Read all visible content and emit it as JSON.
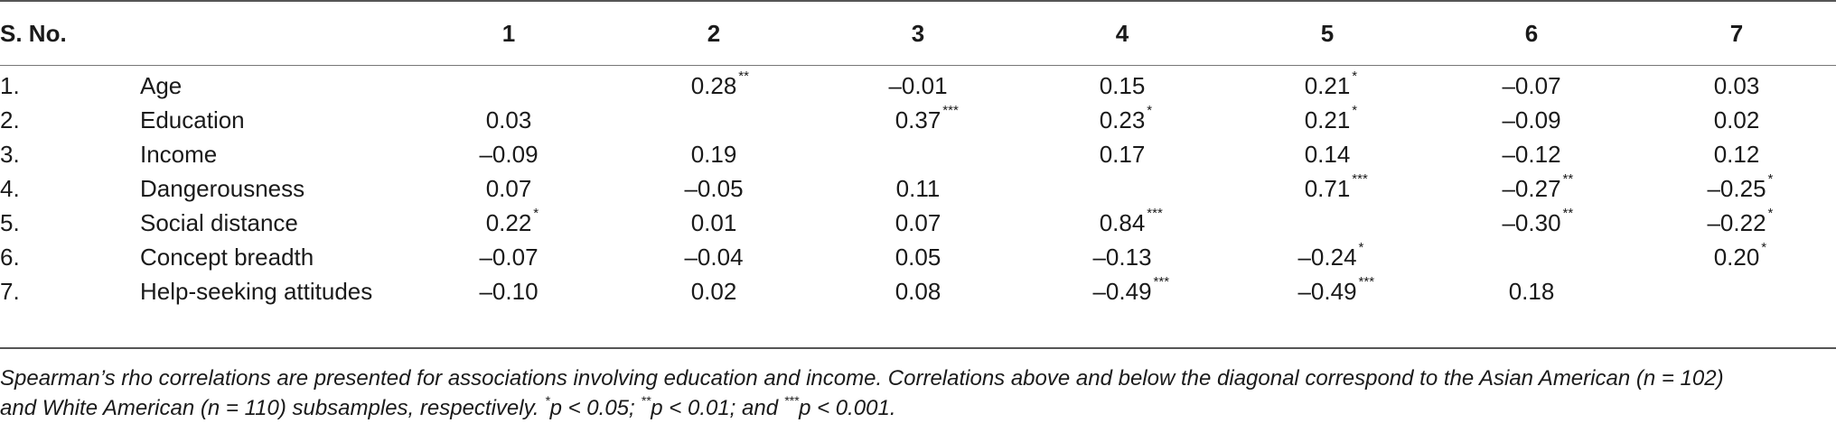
{
  "table": {
    "header": {
      "sno_label": "S. No.",
      "columns": [
        "1",
        "2",
        "3",
        "4",
        "5",
        "6",
        "7"
      ]
    },
    "rows": [
      {
        "sno": "1.",
        "variable": "Age",
        "cells": [
          {
            "v": "",
            "s": ""
          },
          {
            "v": "0.28",
            "s": "**"
          },
          {
            "v": "–0.01",
            "s": ""
          },
          {
            "v": "0.15",
            "s": ""
          },
          {
            "v": "0.21",
            "s": "*"
          },
          {
            "v": "–0.07",
            "s": ""
          },
          {
            "v": "0.03",
            "s": ""
          }
        ]
      },
      {
        "sno": "2.",
        "variable": "Education",
        "cells": [
          {
            "v": "0.03",
            "s": ""
          },
          {
            "v": "",
            "s": ""
          },
          {
            "v": "0.37",
            "s": "***"
          },
          {
            "v": "0.23",
            "s": "*"
          },
          {
            "v": "0.21",
            "s": "*"
          },
          {
            "v": "–0.09",
            "s": ""
          },
          {
            "v": "0.02",
            "s": ""
          }
        ]
      },
      {
        "sno": "3.",
        "variable": "Income",
        "cells": [
          {
            "v": "–0.09",
            "s": ""
          },
          {
            "v": "0.19",
            "s": ""
          },
          {
            "v": "",
            "s": ""
          },
          {
            "v": "0.17",
            "s": ""
          },
          {
            "v": "0.14",
            "s": ""
          },
          {
            "v": "–0.12",
            "s": ""
          },
          {
            "v": "0.12",
            "s": ""
          }
        ]
      },
      {
        "sno": "4.",
        "variable": "Dangerousness",
        "cells": [
          {
            "v": "0.07",
            "s": ""
          },
          {
            "v": "–0.05",
            "s": ""
          },
          {
            "v": "0.11",
            "s": ""
          },
          {
            "v": "",
            "s": ""
          },
          {
            "v": "0.71",
            "s": "***"
          },
          {
            "v": "–0.27",
            "s": "**"
          },
          {
            "v": "–0.25",
            "s": "*"
          }
        ]
      },
      {
        "sno": "5.",
        "variable": "Social distance",
        "cells": [
          {
            "v": "0.22",
            "s": "*"
          },
          {
            "v": "0.01",
            "s": ""
          },
          {
            "v": "0.07",
            "s": ""
          },
          {
            "v": "0.84",
            "s": "***"
          },
          {
            "v": "",
            "s": ""
          },
          {
            "v": "–0.30",
            "s": "**"
          },
          {
            "v": "–0.22",
            "s": "*"
          }
        ]
      },
      {
        "sno": "6.",
        "variable": "Concept breadth",
        "cells": [
          {
            "v": "–0.07",
            "s": ""
          },
          {
            "v": "–0.04",
            "s": ""
          },
          {
            "v": "0.05",
            "s": ""
          },
          {
            "v": "–0.13",
            "s": ""
          },
          {
            "v": "–0.24",
            "s": "*"
          },
          {
            "v": "",
            "s": ""
          },
          {
            "v": "0.20",
            "s": "*"
          }
        ]
      },
      {
        "sno": "7.",
        "variable": "Help-seeking attitudes",
        "cells": [
          {
            "v": "–0.10",
            "s": ""
          },
          {
            "v": "0.02",
            "s": ""
          },
          {
            "v": "0.08",
            "s": ""
          },
          {
            "v": "–0.49",
            "s": "***"
          },
          {
            "v": "–0.49",
            "s": "***"
          },
          {
            "v": "0.18",
            "s": ""
          },
          {
            "v": "",
            "s": ""
          }
        ]
      }
    ]
  },
  "footnote": {
    "line1": "Spearman’s rho correlations are presented for associations involving education and income. Correlations above and below the diagonal correspond to the Asian American (n = 102)",
    "line2_a": "and White American (n = 110) subsamples, respectively. ",
    "sig1_mark": "*",
    "sig1_text": "p < 0.05; ",
    "sig2_mark": "**",
    "sig2_text": "p < 0.01; and ",
    "sig3_mark": "***",
    "sig3_text": "p < 0.001."
  }
}
